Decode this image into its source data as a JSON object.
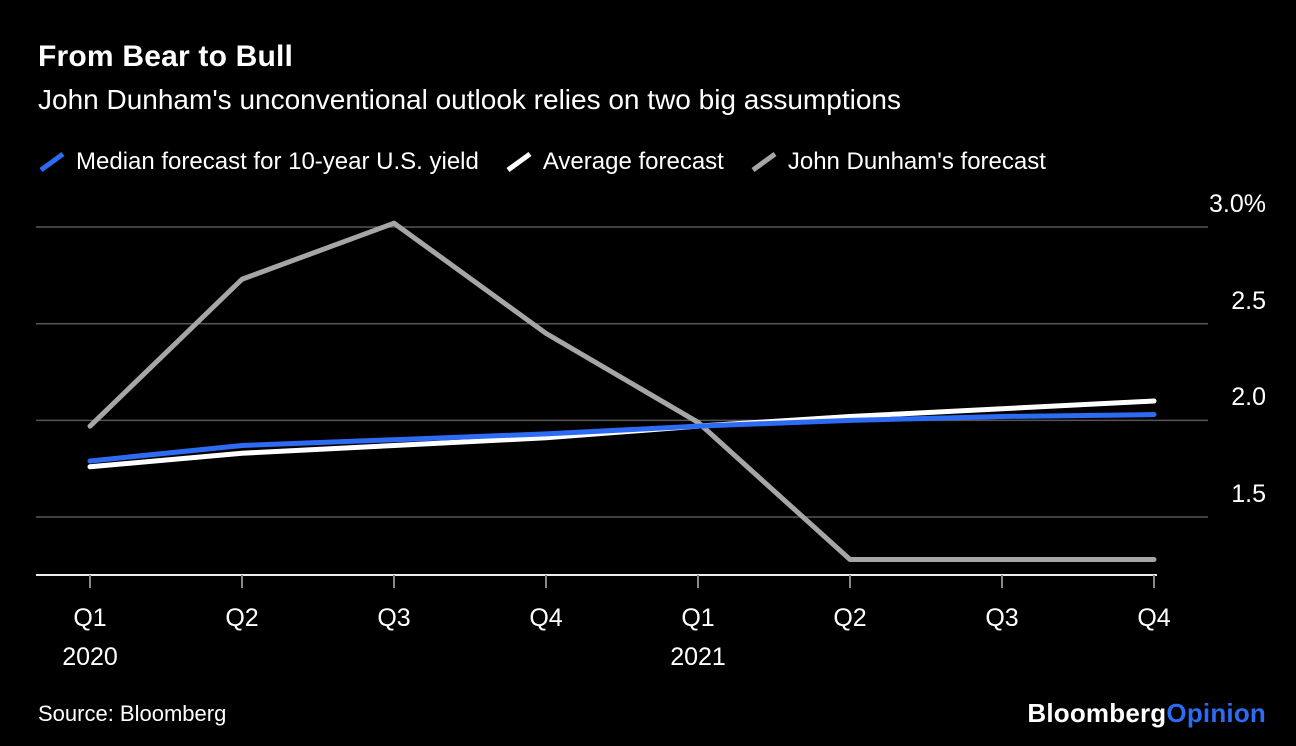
{
  "colors": {
    "background": "#000000",
    "text": "#ffffff",
    "accent_blue": "#2d6bf3",
    "gray": "#a6a6a6",
    "gridline": "#565656",
    "axis_line": "#ededed",
    "tick": "#8a8a8a"
  },
  "chart_data": {
    "type": "line",
    "title": "From Bear to Bull",
    "subtitle": "John Dunham's unconventional outlook relies on two big assumptions",
    "categories": [
      "Q1",
      "Q2",
      "Q3",
      "Q4",
      "Q1",
      "Q2",
      "Q3",
      "Q4"
    ],
    "year_labels": [
      {
        "category_index": 0,
        "label": "2020"
      },
      {
        "category_index": 4,
        "label": "2021"
      }
    ],
    "series": [
      {
        "name": "Median forecast for 10-year U.S. yield",
        "color": "#2d6bf3",
        "values": [
          1.79,
          1.87,
          1.9,
          1.93,
          1.97,
          2.0,
          2.02,
          2.03
        ]
      },
      {
        "name": "Average forecast",
        "color": "#ffffff",
        "values": [
          1.76,
          1.83,
          1.87,
          1.91,
          1.97,
          2.02,
          2.06,
          2.1
        ]
      },
      {
        "name": "John Dunham's forecast",
        "color": "#a6a6a6",
        "values": [
          1.97,
          2.73,
          3.02,
          2.45,
          1.99,
          1.28,
          1.28,
          1.28
        ]
      }
    ],
    "y_axis": {
      "min": 1.2,
      "max": 3.06,
      "unit": "%",
      "gridlines": [
        1.5,
        2.0,
        2.5,
        3.0
      ],
      "tick_labels": [
        "1.5",
        "2.0",
        "2.5",
        "3.0%"
      ]
    },
    "xlabel": "",
    "ylabel": "",
    "legend_position": "top",
    "grid": true
  },
  "footer": {
    "source": "Source: Bloomberg",
    "logo": {
      "brand": "Bloomberg",
      "division": "Opinion"
    }
  }
}
